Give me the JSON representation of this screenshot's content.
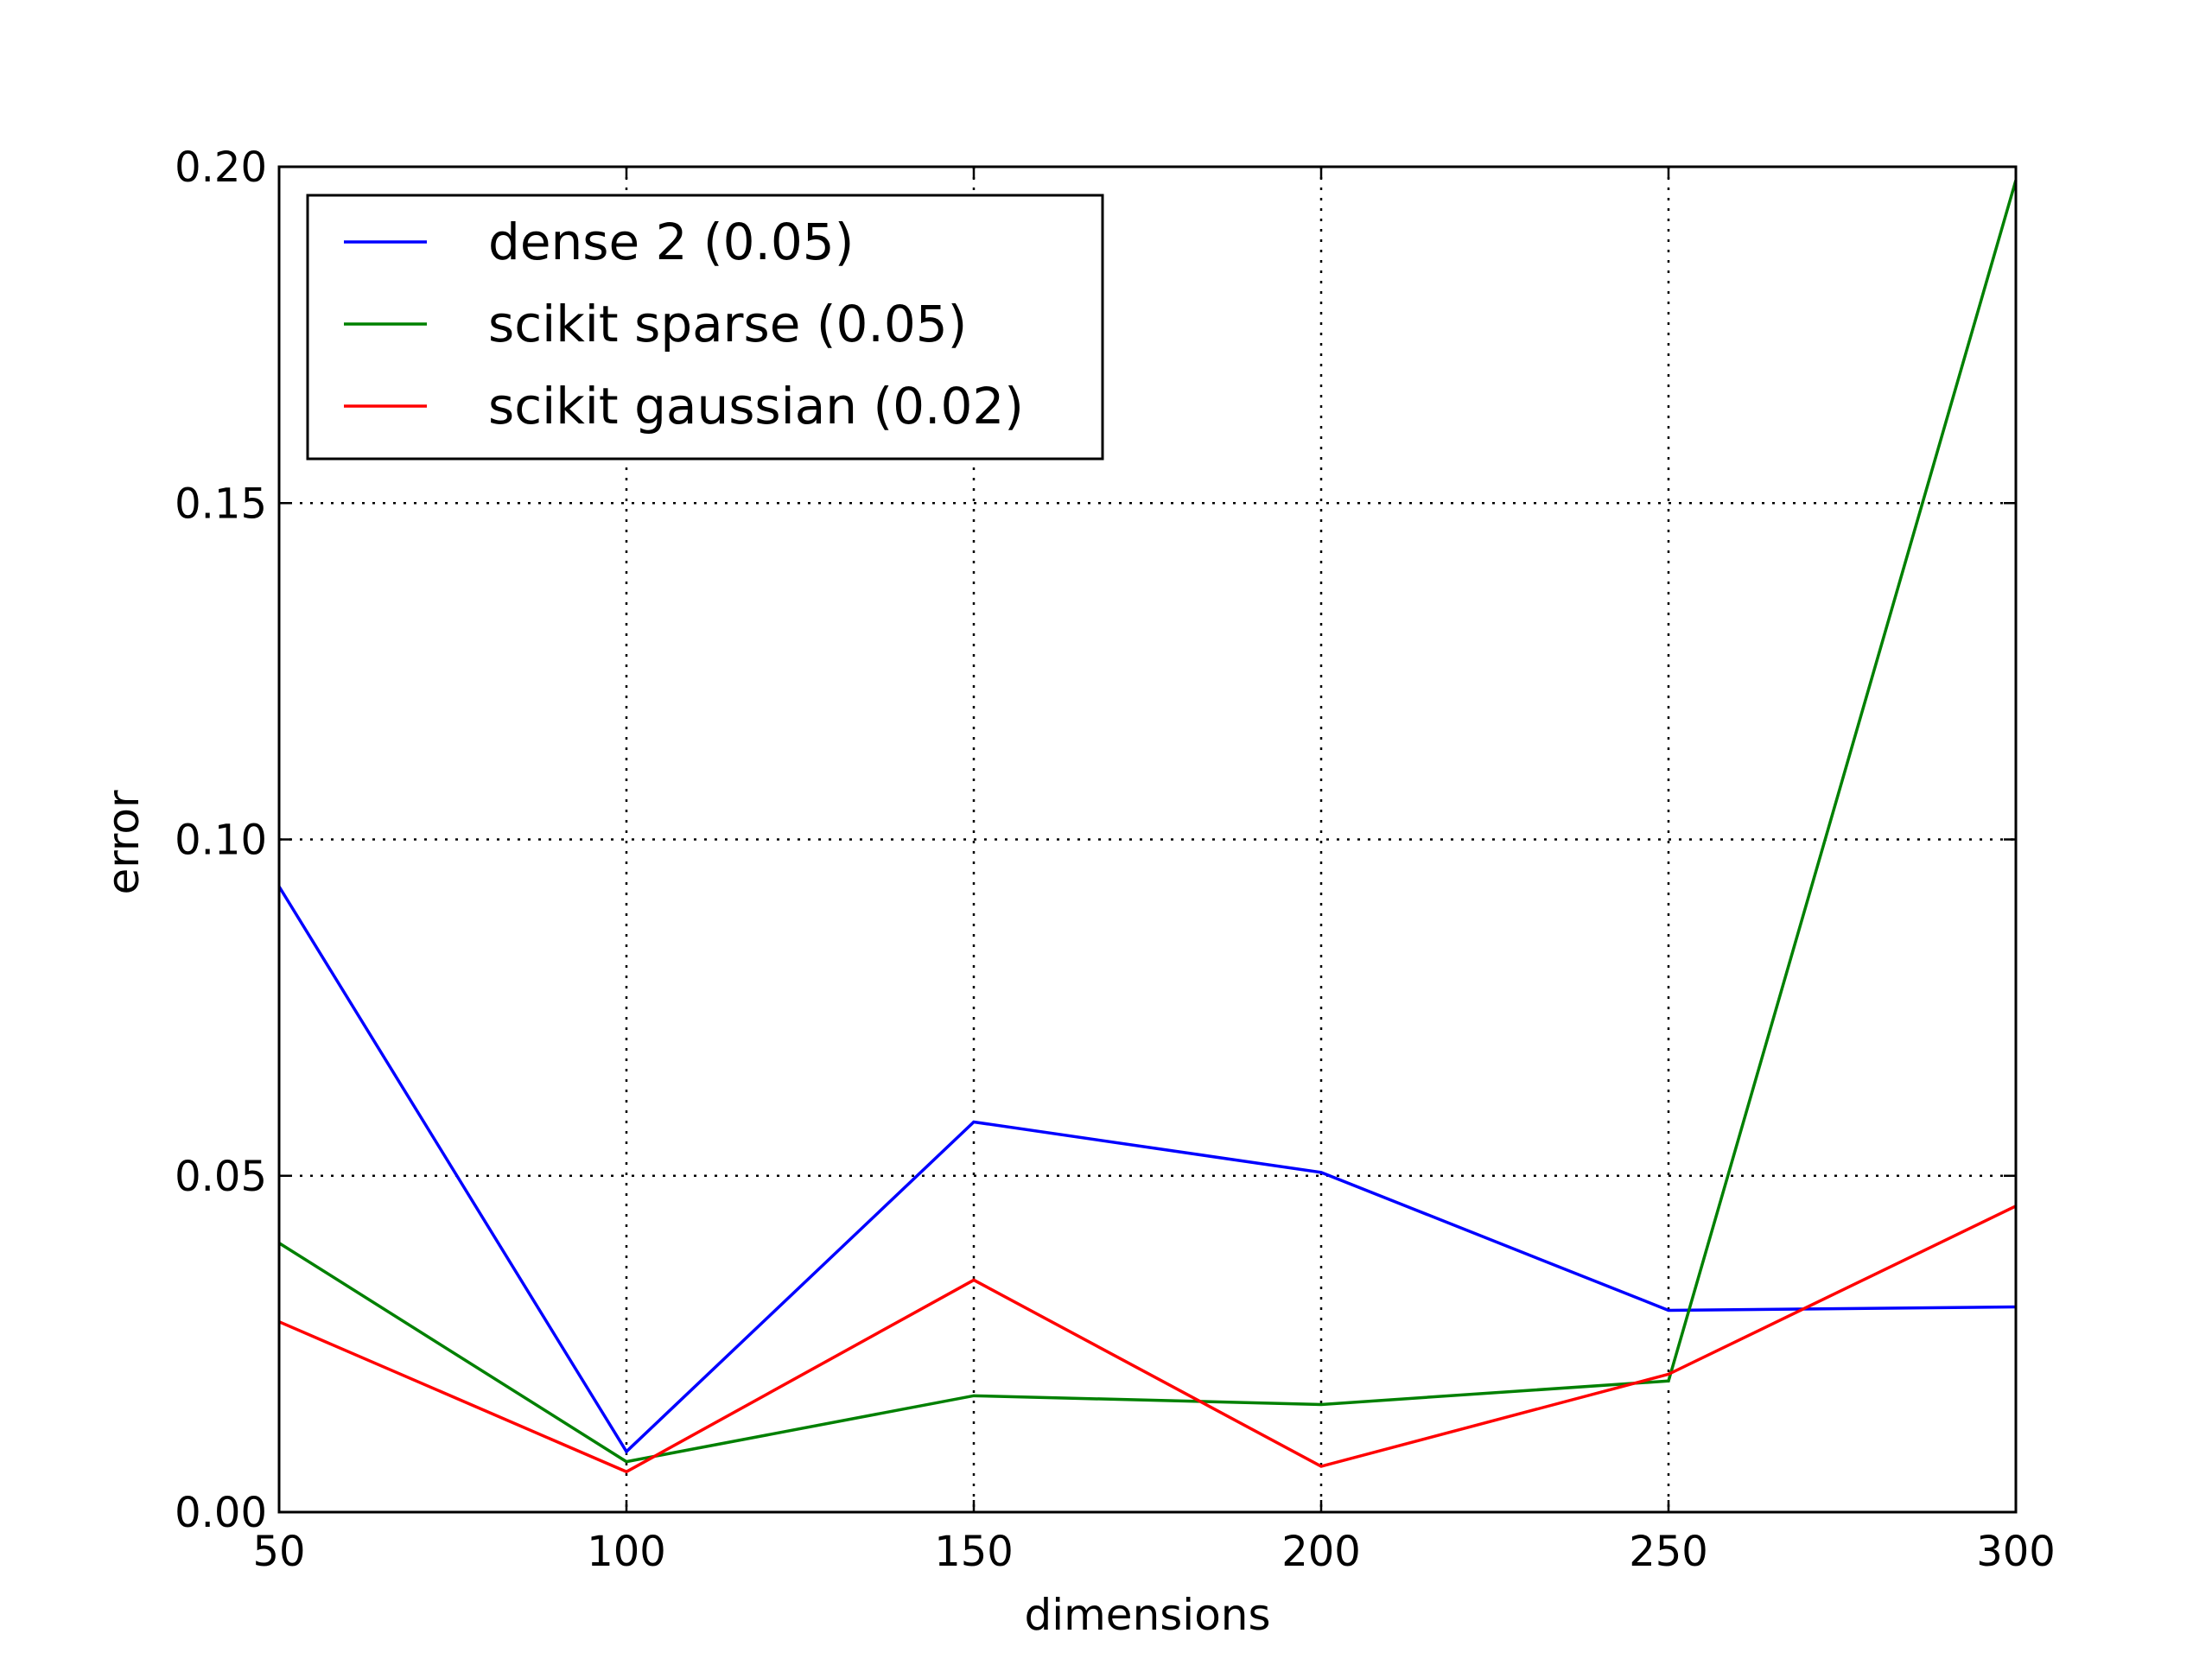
{
  "chart_data": {
    "type": "line",
    "xlabel": "dimensions",
    "ylabel": "error",
    "x": [
      50,
      100,
      150,
      200,
      250,
      300
    ],
    "xlim": [
      50,
      300
    ],
    "ylim": [
      0.0,
      0.2
    ],
    "xticks": [
      "50",
      "100",
      "150",
      "200",
      "250",
      "300"
    ],
    "yticks": [
      "0.00",
      "0.05",
      "0.10",
      "0.15",
      "0.20"
    ],
    "grid": true,
    "legend_position": "top-left",
    "series": [
      {
        "name": "dense 2 (0.05)",
        "color": "#0000ff",
        "values": [
          0.093,
          0.009,
          0.058,
          0.0505,
          0.03,
          0.0305
        ]
      },
      {
        "name": "scikit sparse (0.05)",
        "color": "#008000",
        "values": [
          0.04,
          0.0075,
          0.0173,
          0.016,
          0.0195,
          0.198
        ]
      },
      {
        "name": "scikit gaussian (0.02)",
        "color": "#ff0000",
        "values": [
          0.0283,
          0.006,
          0.0345,
          0.0068,
          0.0205,
          0.0455
        ]
      }
    ]
  }
}
